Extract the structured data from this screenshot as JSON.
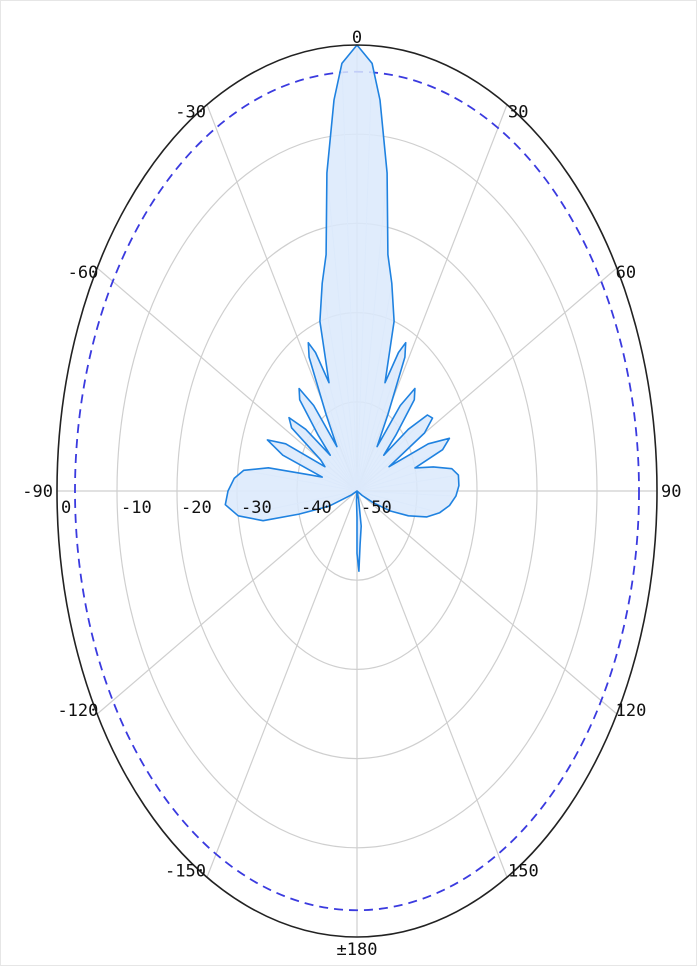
{
  "chart_data": {
    "type": "polar",
    "title": "",
    "angle_unit": "degrees",
    "angle_zero": "top",
    "angle_direction": "clockwise",
    "angle_ticks": [
      {
        "angle": 0,
        "label": "0"
      },
      {
        "angle": 30,
        "label": "30"
      },
      {
        "angle": 60,
        "label": "60"
      },
      {
        "angle": 90,
        "label": "90"
      },
      {
        "angle": 120,
        "label": "120"
      },
      {
        "angle": 150,
        "label": "150"
      },
      {
        "angle": 180,
        "label": "±180"
      },
      {
        "angle": -150,
        "label": "-150"
      },
      {
        "angle": -120,
        "label": "-120"
      },
      {
        "angle": -90,
        "label": "-90"
      },
      {
        "angle": -60,
        "label": "-60"
      },
      {
        "angle": -30,
        "label": "-30"
      }
    ],
    "radial_axis": {
      "rlim": [
        -50,
        0
      ],
      "ticks": [
        0,
        -10,
        -20,
        -30,
        -40,
        -50
      ],
      "tick_labels": [
        "0",
        "-10",
        "-20",
        "-30",
        "-40",
        "-50"
      ]
    },
    "grid": true,
    "reference_circle": {
      "r": -3,
      "style": "dashed",
      "color": "#3a3adf"
    },
    "series": [
      {
        "color": "#1f82e0",
        "fill": "#dbe9fb",
        "points": [
          [
            -180,
            -47
          ],
          [
            -175,
            -49
          ],
          [
            -170,
            -50
          ],
          [
            -160,
            -50
          ],
          [
            -150,
            -50
          ],
          [
            -140,
            -50
          ],
          [
            -130,
            -50
          ],
          [
            -120,
            -50
          ],
          [
            -115,
            -49
          ],
          [
            -110,
            -45
          ],
          [
            -105,
            -40
          ],
          [
            -102,
            -34
          ],
          [
            -98,
            -30
          ],
          [
            -94,
            -28
          ],
          [
            -90,
            -28.5
          ],
          [
            -86,
            -29.5
          ],
          [
            -83,
            -31
          ],
          [
            -80,
            -35
          ],
          [
            -77,
            -42
          ],
          [
            -75,
            -44
          ],
          [
            -72,
            -37
          ],
          [
            -69,
            -34
          ],
          [
            -66,
            -37
          ],
          [
            -63,
            -44
          ],
          [
            -60,
            -43
          ],
          [
            -57,
            -37
          ],
          [
            -54,
            -36
          ],
          [
            -51,
            -39
          ],
          [
            -48,
            -44
          ],
          [
            -46,
            -41
          ],
          [
            -43,
            -36
          ],
          [
            -40,
            -35
          ],
          [
            -37,
            -38
          ],
          [
            -34,
            -44
          ],
          [
            -31,
            -40
          ],
          [
            -28,
            -33
          ],
          [
            -26,
            -31.5
          ],
          [
            -24,
            -33
          ],
          [
            -21,
            -37
          ],
          [
            -18,
            -30
          ],
          [
            -14,
            -26
          ],
          [
            -11,
            -23
          ],
          [
            -8,
            -14
          ],
          [
            -5,
            -6
          ],
          [
            -3,
            -2
          ],
          [
            0,
            0
          ],
          [
            3,
            -2
          ],
          [
            5,
            -6
          ],
          [
            8,
            -14
          ],
          [
            11,
            -23
          ],
          [
            14,
            -26
          ],
          [
            18,
            -30
          ],
          [
            21,
            -37
          ],
          [
            24,
            -33
          ],
          [
            26,
            -31.5
          ],
          [
            28,
            -33
          ],
          [
            31,
            -40
          ],
          [
            34,
            -44
          ],
          [
            37,
            -38
          ],
          [
            40,
            -35
          ],
          [
            43,
            -36
          ],
          [
            46,
            -41
          ],
          [
            48,
            -44
          ],
          [
            51,
            -39
          ],
          [
            54,
            -35.5
          ],
          [
            57,
            -35
          ],
          [
            60,
            -37
          ],
          [
            63,
            -44
          ],
          [
            66,
            -37
          ],
          [
            69,
            -33.5
          ],
          [
            72,
            -35
          ],
          [
            75,
            -40
          ],
          [
            78,
            -37
          ],
          [
            81,
            -34
          ],
          [
            84,
            -33
          ],
          [
            88,
            -33
          ],
          [
            92,
            -33.5
          ],
          [
            96,
            -34.5
          ],
          [
            100,
            -36
          ],
          [
            104,
            -38
          ],
          [
            108,
            -41
          ],
          [
            112,
            -44
          ],
          [
            116,
            -47
          ],
          [
            120,
            -49
          ],
          [
            125,
            -50
          ],
          [
            130,
            -50
          ],
          [
            140,
            -50
          ],
          [
            150,
            -50
          ],
          [
            160,
            -50
          ],
          [
            165,
            -49
          ],
          [
            170,
            -46
          ],
          [
            175,
            -44
          ],
          [
            178,
            -41
          ],
          [
            180,
            -43
          ]
        ]
      }
    ]
  }
}
